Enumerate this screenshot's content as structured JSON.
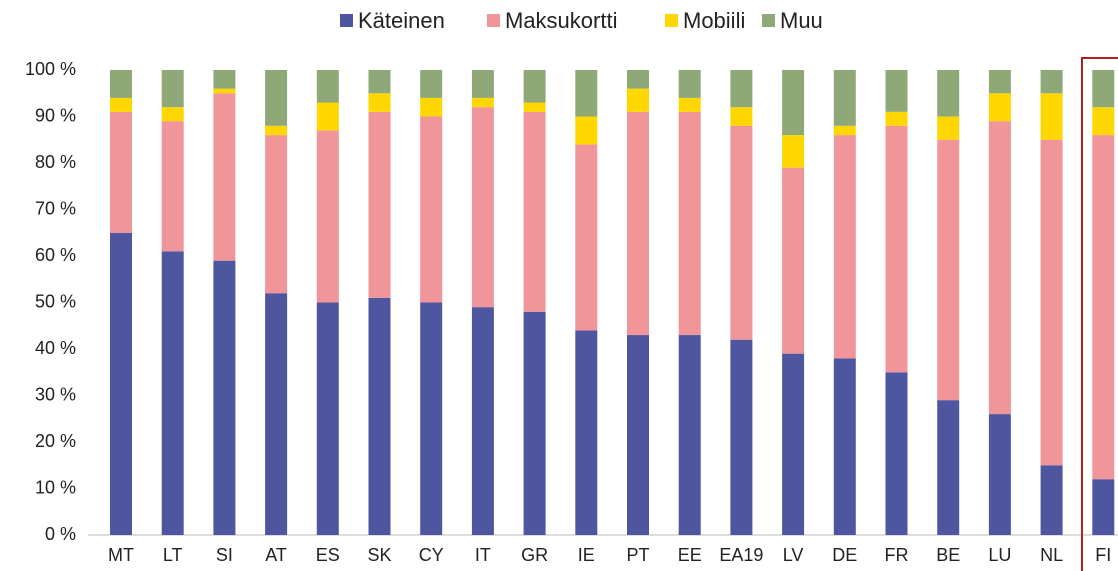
{
  "chart_data": {
    "type": "stacked_bar",
    "categories": [
      "MT",
      "LT",
      "SI",
      "AT",
      "ES",
      "SK",
      "CY",
      "IT",
      "GR",
      "IE",
      "PT",
      "EE",
      "EA19",
      "LV",
      "DE",
      "FR",
      "BE",
      "LU",
      "NL",
      "FI"
    ],
    "series": [
      {
        "name": "Käteinen",
        "color": "#4f56a0",
        "values": [
          65,
          61,
          59,
          52,
          50,
          51,
          50,
          49,
          48,
          44,
          43,
          43,
          42,
          39,
          38,
          35,
          29,
          26,
          15,
          12
        ]
      },
      {
        "name": "Maksukortti",
        "color": "#f0959a",
        "values": [
          26,
          28,
          36,
          34,
          37,
          40,
          40,
          43,
          43,
          40,
          48,
          48,
          46,
          40,
          48,
          53,
          56,
          63,
          70,
          74
        ]
      },
      {
        "name": "Mobiili",
        "color": "#ffd700",
        "values": [
          3,
          3,
          1,
          2,
          6,
          4,
          4,
          2,
          2,
          6,
          5,
          3,
          4,
          7,
          2,
          3,
          5,
          6,
          10,
          6
        ]
      },
      {
        "name": "Muu",
        "color": "#8fa878",
        "values": [
          6,
          8,
          4,
          12,
          7,
          5,
          6,
          6,
          7,
          10,
          4,
          6,
          8,
          14,
          12,
          9,
          10,
          5,
          5,
          8
        ]
      }
    ],
    "ylim": [
      0,
      100
    ],
    "yticks": [
      {
        "value": 0,
        "label": "0 %"
      },
      {
        "value": 10,
        "label": "10 %"
      },
      {
        "value": 20,
        "label": "20 %"
      },
      {
        "value": 30,
        "label": "30 %"
      },
      {
        "value": 40,
        "label": "40 %"
      },
      {
        "value": 50,
        "label": "50 %"
      },
      {
        "value": 60,
        "label": "60 %"
      },
      {
        "value": 70,
        "label": "70 %"
      },
      {
        "value": 80,
        "label": "80 %"
      },
      {
        "value": 90,
        "label": "90 %"
      },
      {
        "value": 100,
        "label": "100 %"
      }
    ],
    "legend": "top"
  }
}
